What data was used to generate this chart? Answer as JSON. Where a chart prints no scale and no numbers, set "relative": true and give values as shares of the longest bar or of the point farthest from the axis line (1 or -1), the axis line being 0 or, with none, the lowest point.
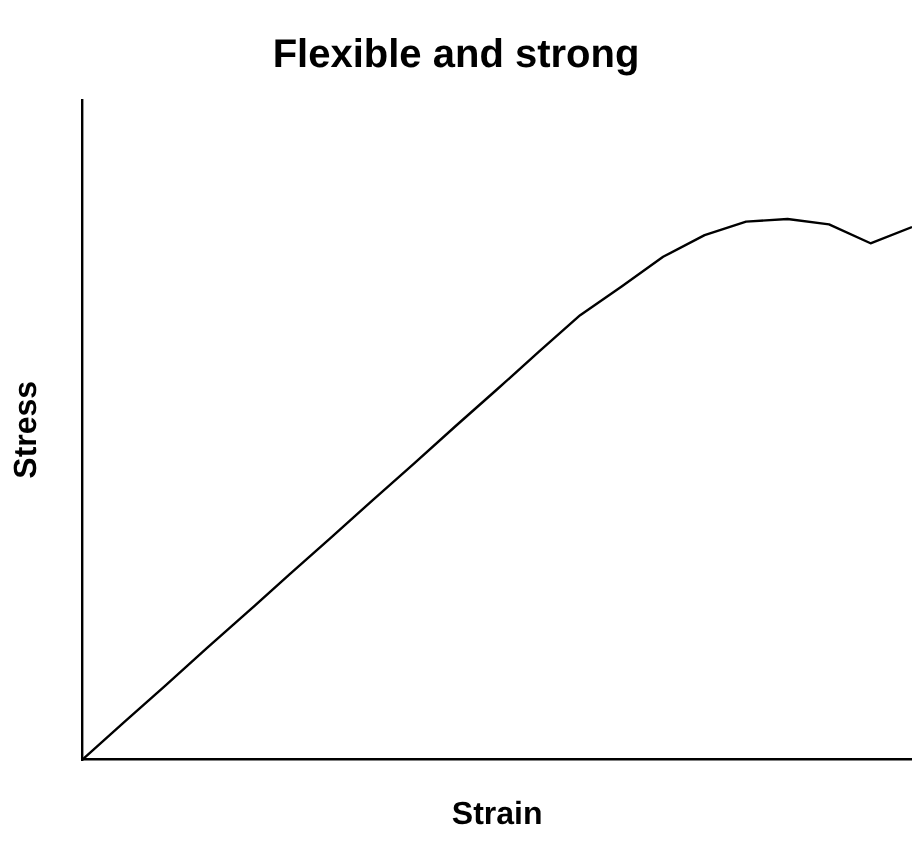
{
  "chart_data": {
    "type": "line",
    "title": "Flexible and strong",
    "xlabel": "Strain",
    "ylabel": "Stress",
    "relative": true,
    "grid": false,
    "legend": false,
    "marker": "none",
    "line_style": "solid",
    "categories": [
      null,
      null,
      null,
      null,
      null,
      null,
      null,
      null,
      null,
      null,
      null,
      null,
      null,
      null,
      null,
      null,
      null,
      null,
      null,
      null,
      null
    ],
    "series": [
      {
        "color": "#000000",
        "values": [
          0,
          0.069,
          0.137,
          0.206,
          0.274,
          0.343,
          0.411,
          0.48,
          0.548,
          0.617,
          0.685,
          0.754,
          0.822,
          0.875,
          0.93,
          0.97,
          0.995,
          1,
          0.99,
          0.955,
          0.985
        ]
      }
    ]
  }
}
